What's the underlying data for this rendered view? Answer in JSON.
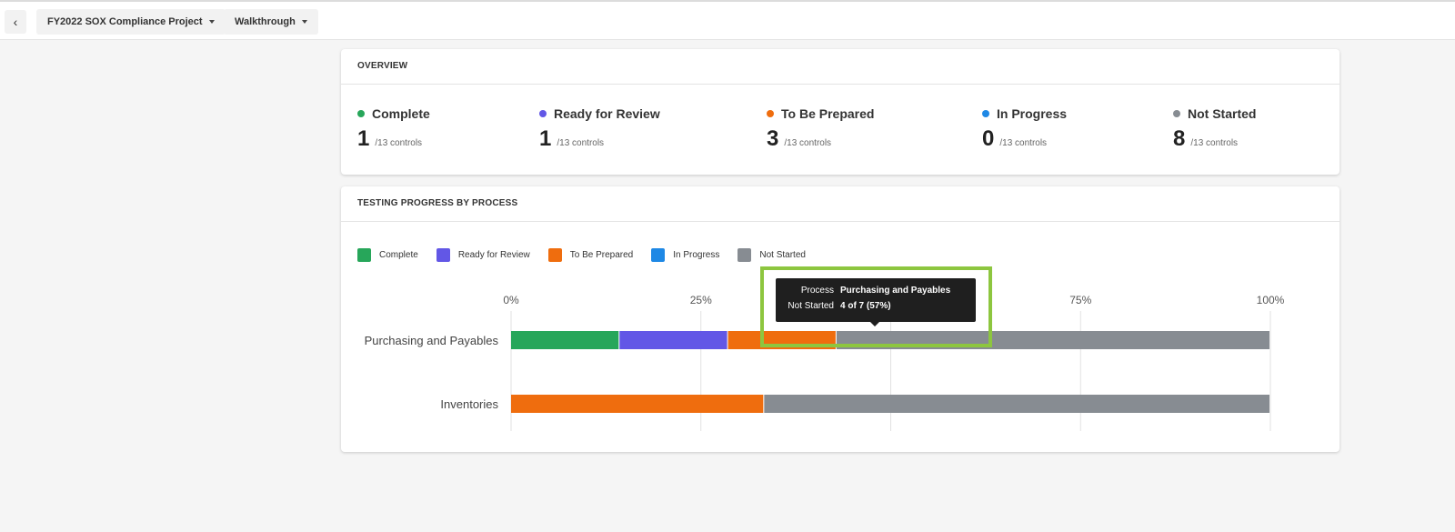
{
  "header": {
    "back_icon": "chevron-left-icon",
    "project_label": "FY2022 SOX Compliance Project",
    "phase_label": "Walkthrough"
  },
  "overview": {
    "title": "OVERVIEW",
    "stats": [
      {
        "label": "Complete",
        "value": "1",
        "of": "/13 controls",
        "color": "#27a65a"
      },
      {
        "label": "Ready for Review",
        "value": "1",
        "of": "/13 controls",
        "color": "#6257e6"
      },
      {
        "label": "To Be Prepared",
        "value": "3",
        "of": "/13 controls",
        "color": "#ef6d0e"
      },
      {
        "label": "In Progress",
        "value": "0",
        "of": "/13 controls",
        "color": "#1e88e5"
      },
      {
        "label": "Not Started",
        "value": "8",
        "of": "/13 controls",
        "color": "#878c92"
      }
    ]
  },
  "progress": {
    "title": "TESTING PROGRESS BY PROCESS"
  },
  "chart_data": {
    "type": "bar",
    "orientation": "horizontal",
    "stacked": true,
    "normalized": true,
    "categories": [
      "Purchasing and Payables",
      "Inventories"
    ],
    "series": [
      {
        "name": "Complete",
        "color": "#27a65a",
        "values": [
          1,
          0
        ]
      },
      {
        "name": "Ready for Review",
        "color": "#6257e6",
        "values": [
          1,
          0
        ]
      },
      {
        "name": "To Be Prepared",
        "color": "#ef6d0e",
        "values": [
          1,
          2
        ]
      },
      {
        "name": "In Progress",
        "color": "#1e88e5",
        "values": [
          0,
          0
        ]
      },
      {
        "name": "Not Started",
        "color": "#878c92",
        "values": [
          4,
          4
        ]
      }
    ],
    "x_ticks": [
      "0%",
      "25%",
      "50%",
      "75%",
      "100%"
    ],
    "x_tick_values": [
      0,
      25,
      50,
      75,
      100
    ],
    "xlim": [
      0,
      100
    ],
    "legend_position": "top-left",
    "grid": true
  },
  "tooltip": {
    "key1": "Process",
    "val1": "Purchasing and Payables",
    "key2": "Not Started",
    "val2": "4 of 7 (57%)"
  }
}
